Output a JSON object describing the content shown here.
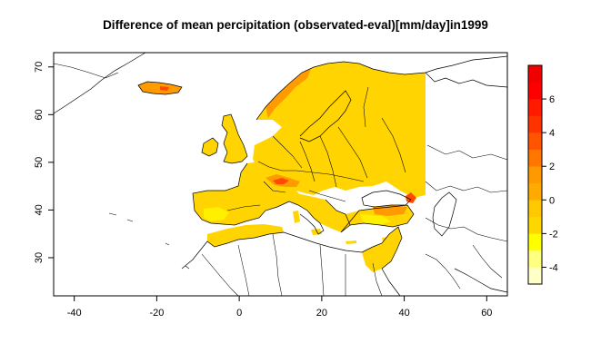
{
  "title": "Difference of mean percipitation (observated-eval)[mm/day]in1999",
  "x_axis": {
    "ticks": [
      "-40",
      "-20",
      "0",
      "20",
      "40",
      "60"
    ],
    "values": [
      -40,
      -20,
      0,
      20,
      40,
      60
    ]
  },
  "y_axis": {
    "ticks": [
      "30",
      "40",
      "50",
      "60",
      "70"
    ],
    "values": [
      30,
      40,
      50,
      60,
      70
    ]
  },
  "map_extent": {
    "lon": [
      -45,
      65
    ],
    "lat": [
      22,
      73
    ]
  },
  "colorbar": {
    "ticks": [
      "-4",
      "-2",
      "0",
      "2",
      "4",
      "6"
    ],
    "tick_values": [
      -4,
      -2,
      0,
      2,
      4,
      6
    ],
    "range": [
      -5,
      8
    ],
    "colors": [
      "#FFFFC8",
      "#FFFF80",
      "#FFFF00",
      "#FFD700",
      "#FFC800",
      "#FFAA00",
      "#FF9900",
      "#FF7700",
      "#FF5500",
      "#FF3300",
      "#FF1A00",
      "#FF0000",
      "#F00000"
    ]
  },
  "colors": {
    "field_main": "#FFD400",
    "field_high": "#FF9A00",
    "field_peak": "#FF4A00",
    "field_low": "#FFF000",
    "coastline": "#000000"
  }
}
